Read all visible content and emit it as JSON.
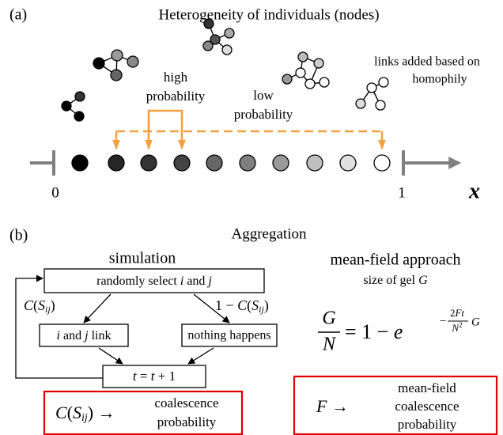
{
  "panel_a": {
    "label": "(a)",
    "title": "Heterogeneity of individuals (nodes)",
    "note": [
      "links added based on",
      "homophily"
    ],
    "high": [
      "high",
      "probability"
    ],
    "low": [
      "low",
      "probability"
    ],
    "axis_start": "0",
    "axis_end": "1",
    "axis_name": "x"
  },
  "panel_b": {
    "label": "(b)",
    "title": "Aggregation",
    "simulation": {
      "heading": "simulation",
      "select": [
        "randomly select ",
        "i",
        " and ",
        "j"
      ],
      "left_prob": [
        "C",
        "(",
        "S",
        "ij",
        ")"
      ],
      "right_prob": [
        "1 − ",
        "C",
        "(",
        "S",
        "ij",
        ")"
      ],
      "link": [
        "i",
        " and ",
        "j",
        " link"
      ],
      "nothing": "nothing happens",
      "update": [
        "t",
        " = ",
        "t",
        " + 1"
      ],
      "result_symbol": [
        "C",
        "(",
        "S",
        "ij",
        ") →"
      ],
      "result_text": [
        "coalescence",
        "probability"
      ]
    },
    "mean_field": {
      "heading": "mean-field approach",
      "subheading": [
        "size of gel ",
        "G"
      ],
      "numerator": "G",
      "denominator": "N",
      "rhs": "= 1 − ",
      "base": "e",
      "exponent": [
        "−",
        "2",
        "Ft",
        "N",
        "2",
        "G"
      ],
      "result_symbol": [
        "F",
        " →"
      ],
      "result_text": [
        "mean-field",
        "coalescence",
        "probability"
      ]
    }
  }
}
